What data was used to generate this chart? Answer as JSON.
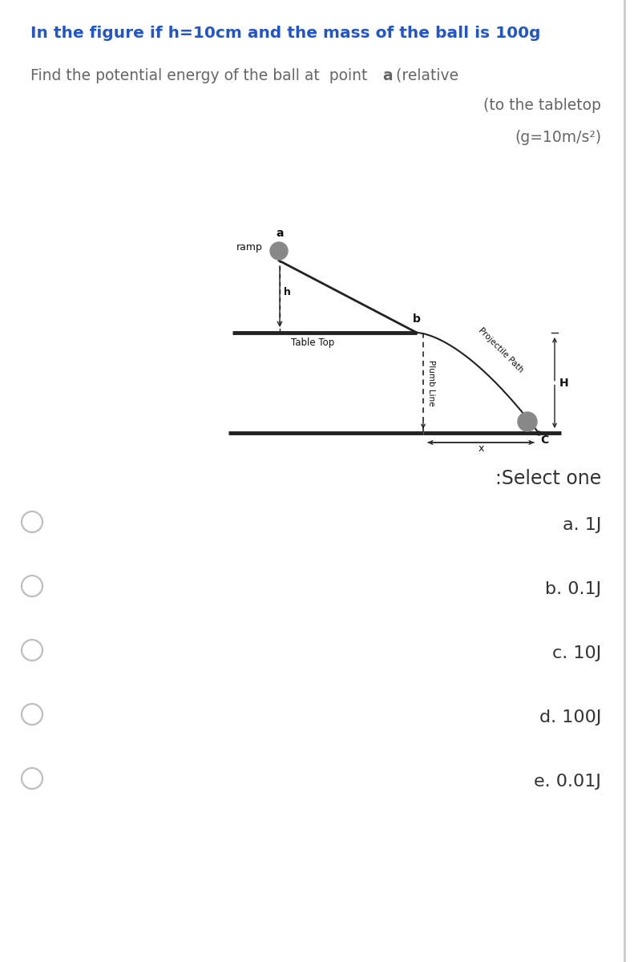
{
  "title_line1": "In the figure if h=10cm and the mass of the ball is 100g",
  "title_color": "#2255cc",
  "title_fontsize": 14.5,
  "question_fontsize": 13.5,
  "question_color": "#666666",
  "select_text": ":Select one",
  "select_fontsize": 17,
  "select_color": "#333333",
  "options": [
    "a. 1J",
    "b. 0.1J",
    "c. 10J",
    "d. 100J",
    "e. 0.01J"
  ],
  "option_fontsize": 16,
  "option_color": "#333333",
  "bg_color": "#ffffff",
  "diagram_color": "#222222",
  "ball_color": "#888888",
  "label_color": "#111111",
  "ramp_label": "ramp",
  "h_label": "h",
  "b_label": "b",
  "a_label": "a",
  "H_label": "H",
  "x_label": "x",
  "C_label": "C",
  "tabletop_label": "Table Top",
  "plumb_label": "Plumb Line",
  "projectile_label": "Projectile Path"
}
